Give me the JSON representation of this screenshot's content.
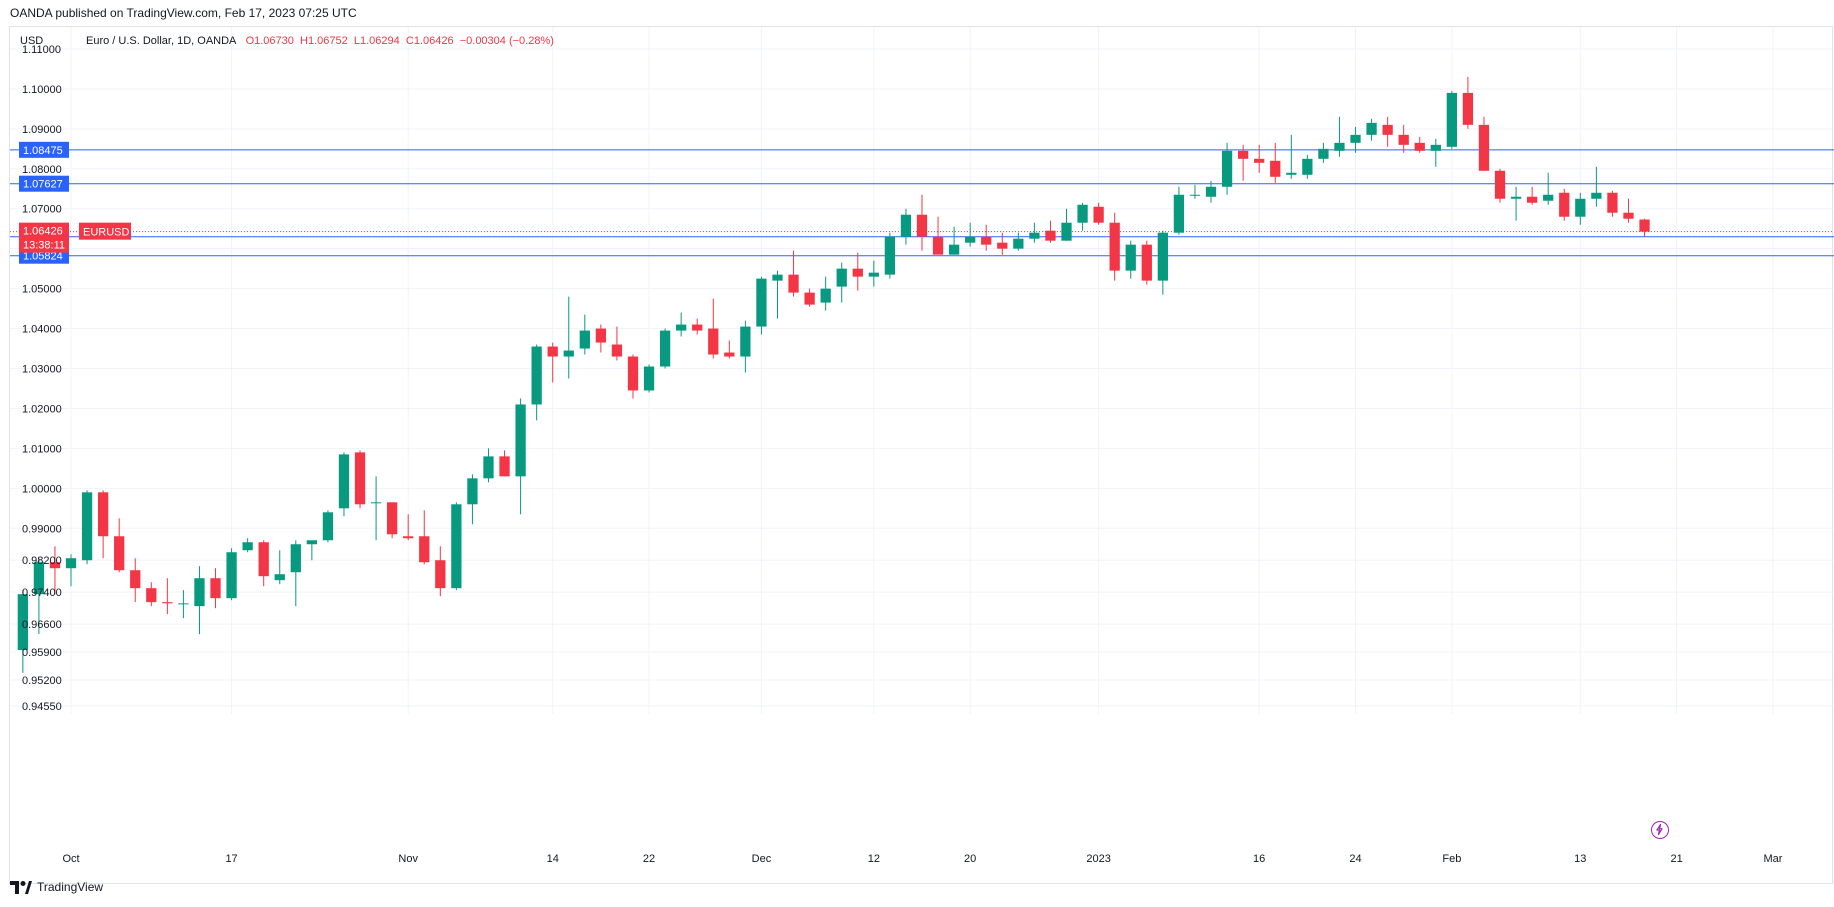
{
  "header": "OANDA published on TradingView.com, Feb 17, 2023 07:25 UTC",
  "currency": "USD",
  "legend": {
    "symbol": "Euro / U.S. Dollar, 1D, OANDA",
    "o": "O1.06730",
    "h": "H1.06752",
    "l": "L1.06294",
    "c": "C1.06426",
    "change": "−0.00304 (−0.28%)"
  },
  "footer": {
    "brand": "TradingView"
  },
  "colors": {
    "up": "#089981",
    "down": "#f23645",
    "hline": "#2962ff",
    "price_tag": "#f23645"
  },
  "chart_data": {
    "type": "candlestick",
    "title": "Euro / U.S. Dollar, 1D, OANDA",
    "ylim": [
      0.9435,
      1.1155
    ],
    "y_ticks": [
      1.11,
      1.1,
      1.09,
      1.08,
      1.07,
      1.06,
      1.05,
      1.04,
      1.03,
      1.02,
      1.01,
      1.0,
      0.99,
      0.982,
      0.974,
      0.966,
      0.959,
      0.952,
      0.9455
    ],
    "y_tick_labels": [
      "1.11000",
      "1.10000",
      "1.09000",
      "1.08000",
      "1.07000",
      "1.06000",
      "1.05000",
      "1.04000",
      "1.03000",
      "1.02000",
      "1.01000",
      "1.00000",
      "0.99000",
      "0.98200",
      "0.97400",
      "0.96600",
      "0.95900",
      "0.95200",
      "0.94550"
    ],
    "x_labels": [
      {
        "label": "Oct",
        "idx": 3
      },
      {
        "label": "17",
        "idx": 13
      },
      {
        "label": "Nov",
        "idx": 24
      },
      {
        "label": "14",
        "idx": 33
      },
      {
        "label": "22",
        "idx": 39
      },
      {
        "label": "Dec",
        "idx": 46
      },
      {
        "label": "12",
        "idx": 53
      },
      {
        "label": "20",
        "idx": 59
      },
      {
        "label": "2023",
        "idx": 67
      },
      {
        "label": "16",
        "idx": 77
      },
      {
        "label": "24",
        "idx": 83
      },
      {
        "label": "Feb",
        "idx": 89
      },
      {
        "label": "13",
        "idx": 97
      },
      {
        "label": "21",
        "idx": 103
      },
      {
        "label": "Mar",
        "idx": 109
      }
    ],
    "x_range": [
      -0.8,
      112.8
    ],
    "horizontal_levels": [
      1.08475,
      1.07627,
      1.06298,
      1.05824
    ],
    "level_labels": [
      "1.08475",
      "1.07627",
      "1.06298",
      "1.05824"
    ],
    "last_price": 1.06426,
    "last_price_label": "1.06426",
    "countdown": "13:38:11",
    "symbol_tag": "EURUSD",
    "candles": [
      {
        "i": 0,
        "o": 0.9595,
        "h": 0.9745,
        "l": 0.9538,
        "c": 0.9735
      },
      {
        "i": 1,
        "o": 0.9735,
        "h": 0.9825,
        "l": 0.9635,
        "c": 0.9815
      },
      {
        "i": 2,
        "o": 0.9815,
        "h": 0.9855,
        "l": 0.9735,
        "c": 0.98
      },
      {
        "i": 3,
        "o": 0.98,
        "h": 0.9835,
        "l": 0.9755,
        "c": 0.9825
      },
      {
        "i": 4,
        "o": 0.982,
        "h": 0.9995,
        "l": 0.981,
        "c": 0.999
      },
      {
        "i": 5,
        "o": 0.999,
        "h": 0.9995,
        "l": 0.9825,
        "c": 0.988
      },
      {
        "i": 6,
        "o": 0.988,
        "h": 0.9925,
        "l": 0.979,
        "c": 0.9795
      },
      {
        "i": 7,
        "o": 0.9795,
        "h": 0.9825,
        "l": 0.9715,
        "c": 0.975
      },
      {
        "i": 8,
        "o": 0.975,
        "h": 0.9765,
        "l": 0.9705,
        "c": 0.9715
      },
      {
        "i": 9,
        "o": 0.9715,
        "h": 0.9775,
        "l": 0.9685,
        "c": 0.9712
      },
      {
        "i": 10,
        "o": 0.9712,
        "h": 0.9745,
        "l": 0.9675,
        "c": 0.9712
      },
      {
        "i": 11,
        "o": 0.9705,
        "h": 0.9805,
        "l": 0.9635,
        "c": 0.9775
      },
      {
        "i": 12,
        "o": 0.9775,
        "h": 0.98,
        "l": 0.97,
        "c": 0.9725
      },
      {
        "i": 13,
        "o": 0.9725,
        "h": 0.985,
        "l": 0.972,
        "c": 0.984
      },
      {
        "i": 14,
        "o": 0.9845,
        "h": 0.9875,
        "l": 0.984,
        "c": 0.9865
      },
      {
        "i": 15,
        "o": 0.9865,
        "h": 0.987,
        "l": 0.9755,
        "c": 0.978
      },
      {
        "i": 16,
        "o": 0.977,
        "h": 0.9845,
        "l": 0.976,
        "c": 0.9785
      },
      {
        "i": 17,
        "o": 0.979,
        "h": 0.987,
        "l": 0.9705,
        "c": 0.986
      },
      {
        "i": 18,
        "o": 0.986,
        "h": 0.9865,
        "l": 0.982,
        "c": 0.987
      },
      {
        "i": 19,
        "o": 0.987,
        "h": 0.9945,
        "l": 0.9865,
        "c": 0.994
      },
      {
        "i": 20,
        "o": 0.995,
        "h": 1.009,
        "l": 0.993,
        "c": 1.0085
      },
      {
        "i": 21,
        "o": 1.009,
        "h": 1.0095,
        "l": 0.995,
        "c": 0.996
      },
      {
        "i": 22,
        "o": 0.9965,
        "h": 1.003,
        "l": 0.987,
        "c": 0.9965
      },
      {
        "i": 23,
        "o": 0.9965,
        "h": 0.9965,
        "l": 0.9875,
        "c": 0.9885
      },
      {
        "i": 24,
        "o": 0.988,
        "h": 0.9935,
        "l": 0.987,
        "c": 0.9875
      },
      {
        "i": 25,
        "o": 0.988,
        "h": 0.9945,
        "l": 0.981,
        "c": 0.9815
      },
      {
        "i": 26,
        "o": 0.982,
        "h": 0.9855,
        "l": 0.973,
        "c": 0.975
      },
      {
        "i": 27,
        "o": 0.975,
        "h": 0.9965,
        "l": 0.9745,
        "c": 0.996
      },
      {
        "i": 28,
        "o": 0.996,
        "h": 1.0035,
        "l": 0.991,
        "c": 1.0025
      },
      {
        "i": 29,
        "o": 1.0025,
        "h": 1.01,
        "l": 1.0015,
        "c": 1.008
      },
      {
        "i": 30,
        "o": 1.008,
        "h": 1.0095,
        "l": 1.003,
        "c": 1.003
      },
      {
        "i": 31,
        "o": 1.003,
        "h": 1.0225,
        "l": 0.9935,
        "c": 1.021
      },
      {
        "i": 32,
        "o": 1.021,
        "h": 1.036,
        "l": 1.017,
        "c": 1.0355
      },
      {
        "i": 33,
        "o": 1.0355,
        "h": 1.0365,
        "l": 1.0265,
        "c": 1.033
      },
      {
        "i": 34,
        "o": 1.033,
        "h": 1.048,
        "l": 1.0275,
        "c": 1.0345
      },
      {
        "i": 35,
        "o": 1.035,
        "h": 1.0435,
        "l": 1.0335,
        "c": 1.0395
      },
      {
        "i": 36,
        "o": 1.04,
        "h": 1.041,
        "l": 1.034,
        "c": 1.0365
      },
      {
        "i": 37,
        "o": 1.036,
        "h": 1.0405,
        "l": 1.032,
        "c": 1.033
      },
      {
        "i": 38,
        "o": 1.033,
        "h": 1.0335,
        "l": 1.0225,
        "c": 1.0245
      },
      {
        "i": 39,
        "o": 1.0245,
        "h": 1.031,
        "l": 1.024,
        "c": 1.0305
      },
      {
        "i": 40,
        "o": 1.0305,
        "h": 1.04,
        "l": 1.03,
        "c": 1.0395
      },
      {
        "i": 41,
        "o": 1.0395,
        "h": 1.044,
        "l": 1.038,
        "c": 1.041
      },
      {
        "i": 42,
        "o": 1.041,
        "h": 1.0425,
        "l": 1.0385,
        "c": 1.0395
      },
      {
        "i": 43,
        "o": 1.04,
        "h": 1.0475,
        "l": 1.0325,
        "c": 1.0335
      },
      {
        "i": 44,
        "o": 1.034,
        "h": 1.037,
        "l": 1.0325,
        "c": 1.033
      },
      {
        "i": 45,
        "o": 1.033,
        "h": 1.042,
        "l": 1.029,
        "c": 1.0405
      },
      {
        "i": 46,
        "o": 1.0405,
        "h": 1.053,
        "l": 1.0385,
        "c": 1.0525
      },
      {
        "i": 47,
        "o": 1.052,
        "h": 1.0545,
        "l": 1.0425,
        "c": 1.0535
      },
      {
        "i": 48,
        "o": 1.0535,
        "h": 1.0595,
        "l": 1.048,
        "c": 1.049
      },
      {
        "i": 49,
        "o": 1.049,
        "h": 1.05,
        "l": 1.0455,
        "c": 1.046
      },
      {
        "i": 50,
        "o": 1.0465,
        "h": 1.053,
        "l": 1.0445,
        "c": 1.05
      },
      {
        "i": 51,
        "o": 1.0505,
        "h": 1.0565,
        "l": 1.0465,
        "c": 1.055
      },
      {
        "i": 52,
        "o": 1.055,
        "h": 1.059,
        "l": 1.0495,
        "c": 1.053
      },
      {
        "i": 53,
        "o": 1.053,
        "h": 1.057,
        "l": 1.0505,
        "c": 1.054
      },
      {
        "i": 54,
        "o": 1.0535,
        "h": 1.064,
        "l": 1.0525,
        "c": 1.063
      },
      {
        "i": 55,
        "o": 1.063,
        "h": 1.07,
        "l": 1.061,
        "c": 1.0685
      },
      {
        "i": 56,
        "o": 1.0685,
        "h": 1.0735,
        "l": 1.0595,
        "c": 1.063
      },
      {
        "i": 57,
        "o": 1.063,
        "h": 1.068,
        "l": 1.059,
        "c": 1.0585
      },
      {
        "i": 58,
        "o": 1.0585,
        "h": 1.0655,
        "l": 1.0585,
        "c": 1.061
      },
      {
        "i": 59,
        "o": 1.0615,
        "h": 1.0665,
        "l": 1.0605,
        "c": 1.063
      },
      {
        "i": 60,
        "o": 1.063,
        "h": 1.066,
        "l": 1.0595,
        "c": 1.061
      },
      {
        "i": 61,
        "o": 1.0615,
        "h": 1.064,
        "l": 1.0585,
        "c": 1.06
      },
      {
        "i": 62,
        "o": 1.06,
        "h": 1.064,
        "l": 1.0595,
        "c": 1.0625
      },
      {
        "i": 63,
        "o": 1.0625,
        "h": 1.0665,
        "l": 1.0615,
        "c": 1.064
      },
      {
        "i": 64,
        "o": 1.0645,
        "h": 1.067,
        "l": 1.0615,
        "c": 1.062
      },
      {
        "i": 65,
        "o": 1.062,
        "h": 1.07,
        "l": 1.062,
        "c": 1.0665
      },
      {
        "i": 66,
        "o": 1.0665,
        "h": 1.0715,
        "l": 1.0645,
        "c": 1.071
      },
      {
        "i": 67,
        "o": 1.0705,
        "h": 1.0715,
        "l": 1.066,
        "c": 1.0665
      },
      {
        "i": 68,
        "o": 1.0665,
        "h": 1.069,
        "l": 1.052,
        "c": 1.0545
      },
      {
        "i": 69,
        "o": 1.0545,
        "h": 1.062,
        "l": 1.0525,
        "c": 1.061
      },
      {
        "i": 70,
        "o": 1.061,
        "h": 1.062,
        "l": 1.051,
        "c": 1.052
      },
      {
        "i": 71,
        "o": 1.052,
        "h": 1.0645,
        "l": 1.0485,
        "c": 1.064
      },
      {
        "i": 72,
        "o": 1.064,
        "h": 1.0755,
        "l": 1.0635,
        "c": 1.0735
      },
      {
        "i": 73,
        "o": 1.0735,
        "h": 1.076,
        "l": 1.0725,
        "c": 1.0735
      },
      {
        "i": 74,
        "o": 1.073,
        "h": 1.077,
        "l": 1.0715,
        "c": 1.0755
      },
      {
        "i": 75,
        "o": 1.0755,
        "h": 1.0865,
        "l": 1.0735,
        "c": 1.0845
      },
      {
        "i": 76,
        "o": 1.0845,
        "h": 1.086,
        "l": 1.077,
        "c": 1.0825
      },
      {
        "i": 77,
        "o": 1.0825,
        "h": 1.086,
        "l": 1.079,
        "c": 1.0815
      },
      {
        "i": 78,
        "o": 1.082,
        "h": 1.0865,
        "l": 1.0765,
        "c": 1.078
      },
      {
        "i": 79,
        "o": 1.0785,
        "h": 1.0885,
        "l": 1.0775,
        "c": 1.079
      },
      {
        "i": 80,
        "o": 1.0785,
        "h": 1.0835,
        "l": 1.0775,
        "c": 1.0825
      },
      {
        "i": 81,
        "o": 1.0825,
        "h": 1.0865,
        "l": 1.0815,
        "c": 1.085
      },
      {
        "i": 82,
        "o": 1.0845,
        "h": 1.093,
        "l": 1.083,
        "c": 1.0865
      },
      {
        "i": 83,
        "o": 1.0865,
        "h": 1.0905,
        "l": 1.084,
        "c": 1.0885
      },
      {
        "i": 84,
        "o": 1.0885,
        "h": 1.0925,
        "l": 1.087,
        "c": 1.0915
      },
      {
        "i": 85,
        "o": 1.091,
        "h": 1.093,
        "l": 1.0855,
        "c": 1.0885
      },
      {
        "i": 86,
        "o": 1.0885,
        "h": 1.091,
        "l": 1.084,
        "c": 1.086
      },
      {
        "i": 87,
        "o": 1.0865,
        "h": 1.088,
        "l": 1.084,
        "c": 1.0845
      },
      {
        "i": 88,
        "o": 1.0845,
        "h": 1.0875,
        "l": 1.0805,
        "c": 1.086
      },
      {
        "i": 89,
        "o": 1.0855,
        "h": 1.0995,
        "l": 1.085,
        "c": 1.099
      },
      {
        "i": 90,
        "o": 1.099,
        "h": 1.103,
        "l": 1.09,
        "c": 1.091
      },
      {
        "i": 91,
        "o": 1.091,
        "h": 1.093,
        "l": 1.0795,
        "c": 1.0795
      },
      {
        "i": 92,
        "o": 1.0795,
        "h": 1.08,
        "l": 1.0715,
        "c": 1.0725
      },
      {
        "i": 93,
        "o": 1.0725,
        "h": 1.0755,
        "l": 1.067,
        "c": 1.073
      },
      {
        "i": 94,
        "o": 1.073,
        "h": 1.0755,
        "l": 1.071,
        "c": 1.0715
      },
      {
        "i": 95,
        "o": 1.072,
        "h": 1.079,
        "l": 1.071,
        "c": 1.0735
      },
      {
        "i": 96,
        "o": 1.074,
        "h": 1.075,
        "l": 1.067,
        "c": 1.068
      },
      {
        "i": 97,
        "o": 1.068,
        "h": 1.074,
        "l": 1.066,
        "c": 1.0725
      },
      {
        "i": 98,
        "o": 1.0725,
        "h": 1.0805,
        "l": 1.0705,
        "c": 1.074
      },
      {
        "i": 99,
        "o": 1.074,
        "h": 1.0745,
        "l": 1.068,
        "c": 1.069
      },
      {
        "i": 100,
        "o": 1.069,
        "h": 1.0725,
        "l": 1.0665,
        "c": 1.0675
      },
      {
        "i": 101,
        "o": 1.0673,
        "h": 1.0675,
        "l": 1.0629,
        "c": 1.06426
      }
    ]
  }
}
